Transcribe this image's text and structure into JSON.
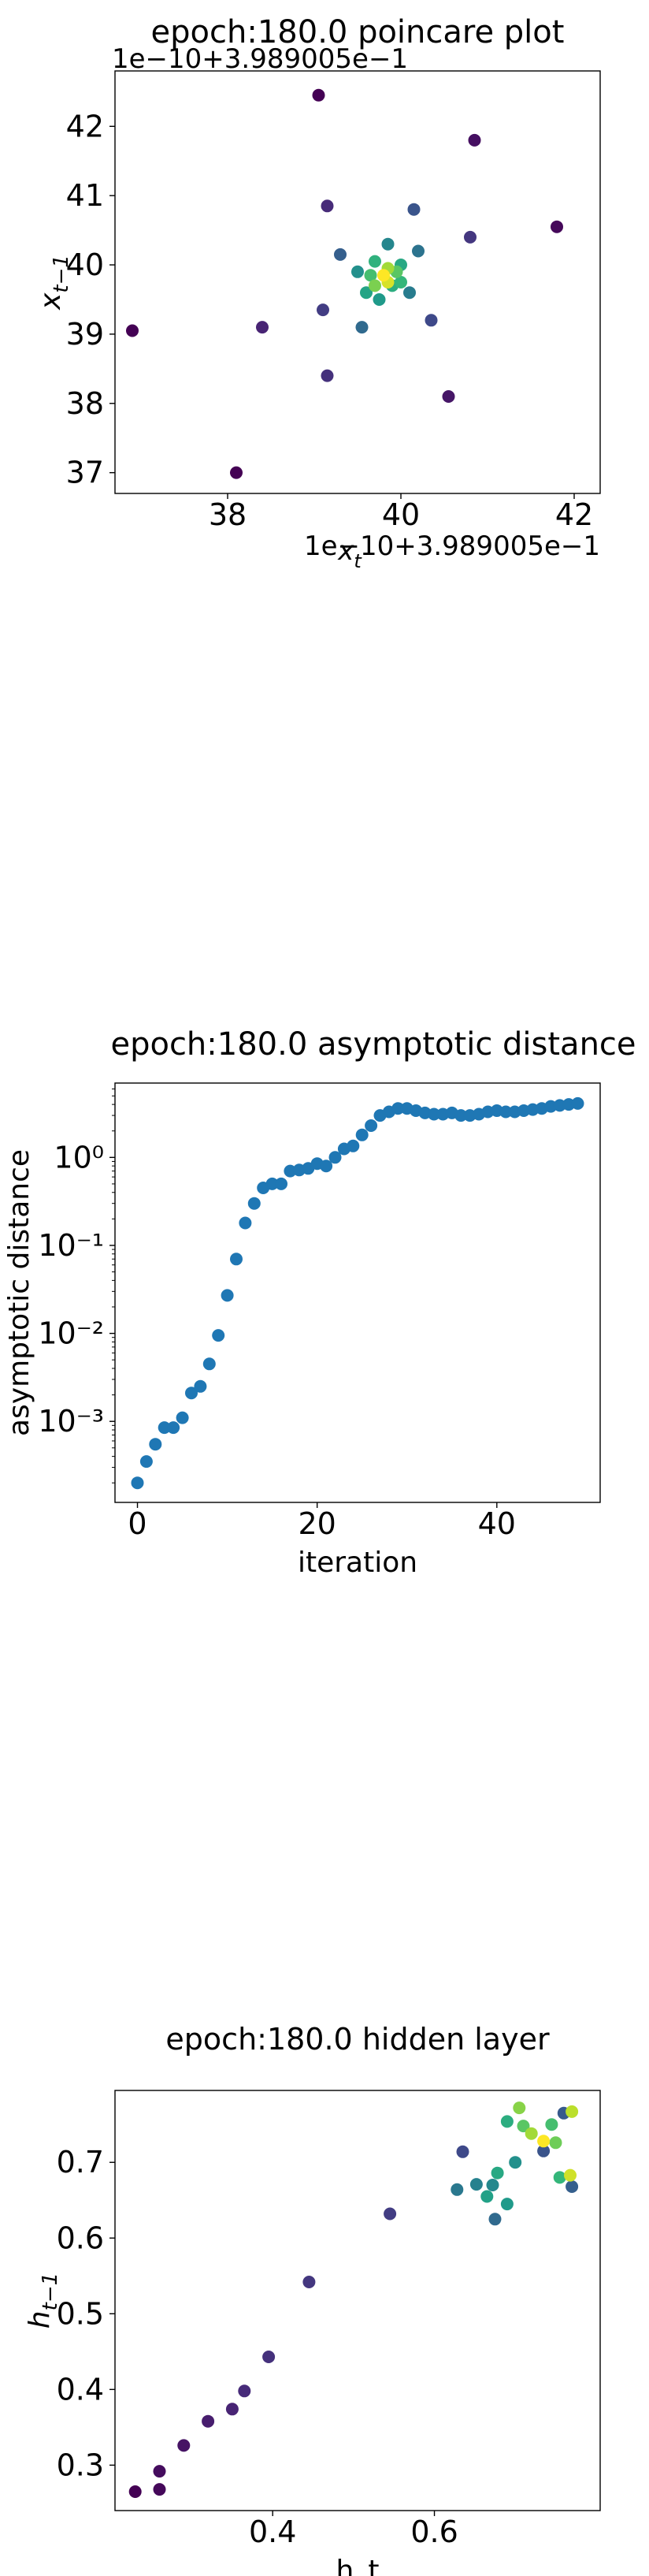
{
  "chart_data": [
    {
      "type": "scatter",
      "title": "epoch:180.0 poincare plot",
      "xlabel": "x_t",
      "ylabel": "x_{t-1}",
      "x_offset_label": "1e−10+3.989005e−1",
      "y_offset_label": "1e−10+3.989005e−1",
      "xlim": [
        36.7,
        42.3
      ],
      "ylim": [
        36.7,
        42.8
      ],
      "xticks": [
        38,
        40,
        42
      ],
      "yticks": [
        37,
        38,
        39,
        40,
        41,
        42
      ],
      "colormap": "viridis",
      "points": [
        {
          "x": 36.9,
          "y": 39.05,
          "c": 0.0
        },
        {
          "x": 38.1,
          "y": 37.0,
          "c": 0.0
        },
        {
          "x": 39.05,
          "y": 42.45,
          "c": 0.0
        },
        {
          "x": 41.8,
          "y": 40.55,
          "c": 0.02
        },
        {
          "x": 40.85,
          "y": 41.8,
          "c": 0.04
        },
        {
          "x": 40.55,
          "y": 38.1,
          "c": 0.06
        },
        {
          "x": 38.4,
          "y": 39.1,
          "c": 0.1
        },
        {
          "x": 39.15,
          "y": 40.85,
          "c": 0.12
        },
        {
          "x": 39.15,
          "y": 38.4,
          "c": 0.14
        },
        {
          "x": 40.8,
          "y": 40.4,
          "c": 0.16
        },
        {
          "x": 39.1,
          "y": 39.35,
          "c": 0.18
        },
        {
          "x": 40.35,
          "y": 39.2,
          "c": 0.22
        },
        {
          "x": 40.15,
          "y": 40.8,
          "c": 0.26
        },
        {
          "x": 39.3,
          "y": 40.15,
          "c": 0.3
        },
        {
          "x": 39.55,
          "y": 39.1,
          "c": 0.34
        },
        {
          "x": 40.2,
          "y": 40.2,
          "c": 0.38
        },
        {
          "x": 40.1,
          "y": 39.6,
          "c": 0.42
        },
        {
          "x": 39.85,
          "y": 40.3,
          "c": 0.46
        },
        {
          "x": 39.5,
          "y": 39.9,
          "c": 0.5
        },
        {
          "x": 39.75,
          "y": 39.5,
          "c": 0.54
        },
        {
          "x": 39.6,
          "y": 39.6,
          "c": 0.58
        },
        {
          "x": 40.0,
          "y": 40.0,
          "c": 0.6
        },
        {
          "x": 39.9,
          "y": 39.7,
          "c": 0.62
        },
        {
          "x": 39.7,
          "y": 40.05,
          "c": 0.64
        },
        {
          "x": 40.0,
          "y": 39.75,
          "c": 0.66
        },
        {
          "x": 39.65,
          "y": 39.85,
          "c": 0.7
        },
        {
          "x": 39.95,
          "y": 39.9,
          "c": 0.74
        },
        {
          "x": 39.7,
          "y": 39.7,
          "c": 0.8
        },
        {
          "x": 39.85,
          "y": 39.95,
          "c": 0.86
        },
        {
          "x": 39.85,
          "y": 39.75,
          "c": 0.94
        },
        {
          "x": 39.8,
          "y": 39.85,
          "c": 1.0
        }
      ]
    },
    {
      "type": "scatter",
      "title": "epoch:180.0 asymptotic distance",
      "xlabel": "iteration",
      "ylabel": "asymptotic distance",
      "yscale": "log",
      "xlim": [
        -2.5,
        51.5
      ],
      "ylim": [
        0.00012,
        7
      ],
      "xticks": [
        0,
        20,
        40
      ],
      "yticks": [
        0.001,
        0.01,
        0.1,
        1
      ],
      "ytick_labels": [
        "10⁻³",
        "10⁻²",
        "10⁻¹",
        "10⁰"
      ],
      "color": "#1f77b4",
      "x": [
        0,
        1,
        2,
        3,
        4,
        5,
        6,
        7,
        8,
        9,
        10,
        11,
        12,
        13,
        14,
        15,
        16,
        17,
        18,
        19,
        20,
        21,
        22,
        23,
        24,
        25,
        26,
        27,
        28,
        29,
        30,
        31,
        32,
        33,
        34,
        35,
        36,
        37,
        38,
        39,
        40,
        41,
        42,
        43,
        44,
        45,
        46,
        47,
        48,
        49
      ],
      "values": [
        0.0002,
        0.00035,
        0.00055,
        0.00085,
        0.00085,
        0.0011,
        0.0021,
        0.0025,
        0.0045,
        0.0095,
        0.027,
        0.07,
        0.18,
        0.3,
        0.45,
        0.5,
        0.5,
        0.7,
        0.72,
        0.75,
        0.85,
        0.8,
        1.0,
        1.25,
        1.35,
        1.8,
        2.3,
        3.0,
        3.3,
        3.6,
        3.6,
        3.4,
        3.2,
        3.1,
        3.1,
        3.2,
        3.0,
        3.0,
        3.1,
        3.3,
        3.4,
        3.3,
        3.3,
        3.4,
        3.5,
        3.6,
        3.8,
        3.9,
        4.0,
        4.1
      ]
    },
    {
      "type": "scatter",
      "title": "epoch:180.0 hidden layer",
      "xlabel": "h_t",
      "ylabel": "h_{t-1}",
      "xlim": [
        0.205,
        0.805
      ],
      "ylim": [
        0.24,
        0.795
      ],
      "xticks": [
        0.4,
        0.6
      ],
      "yticks": [
        0.3,
        0.4,
        0.5,
        0.6,
        0.7
      ],
      "colormap": "viridis",
      "points": [
        {
          "x": 0.23,
          "y": 0.265,
          "c": 0.0
        },
        {
          "x": 0.26,
          "y": 0.268,
          "c": 0.02
        },
        {
          "x": 0.26,
          "y": 0.292,
          "c": 0.03
        },
        {
          "x": 0.29,
          "y": 0.326,
          "c": 0.05
        },
        {
          "x": 0.32,
          "y": 0.358,
          "c": 0.08
        },
        {
          "x": 0.35,
          "y": 0.374,
          "c": 0.1
        },
        {
          "x": 0.365,
          "y": 0.398,
          "c": 0.12
        },
        {
          "x": 0.395,
          "y": 0.443,
          "c": 0.14
        },
        {
          "x": 0.445,
          "y": 0.542,
          "c": 0.16
        },
        {
          "x": 0.545,
          "y": 0.632,
          "c": 0.18
        },
        {
          "x": 0.635,
          "y": 0.714,
          "c": 0.22
        },
        {
          "x": 0.77,
          "y": 0.668,
          "c": 0.3
        },
        {
          "x": 0.76,
          "y": 0.765,
          "c": 0.28
        },
        {
          "x": 0.735,
          "y": 0.715,
          "c": 0.26
        },
        {
          "x": 0.675,
          "y": 0.625,
          "c": 0.34
        },
        {
          "x": 0.628,
          "y": 0.664,
          "c": 0.4
        },
        {
          "x": 0.652,
          "y": 0.671,
          "c": 0.44
        },
        {
          "x": 0.672,
          "y": 0.67,
          "c": 0.47
        },
        {
          "x": 0.7,
          "y": 0.7,
          "c": 0.5
        },
        {
          "x": 0.69,
          "y": 0.645,
          "c": 0.54
        },
        {
          "x": 0.665,
          "y": 0.655,
          "c": 0.57
        },
        {
          "x": 0.678,
          "y": 0.686,
          "c": 0.6
        },
        {
          "x": 0.69,
          "y": 0.754,
          "c": 0.62
        },
        {
          "x": 0.755,
          "y": 0.68,
          "c": 0.66
        },
        {
          "x": 0.745,
          "y": 0.75,
          "c": 0.7
        },
        {
          "x": 0.71,
          "y": 0.748,
          "c": 0.74
        },
        {
          "x": 0.75,
          "y": 0.726,
          "c": 0.78
        },
        {
          "x": 0.705,
          "y": 0.772,
          "c": 0.82
        },
        {
          "x": 0.72,
          "y": 0.738,
          "c": 0.86
        },
        {
          "x": 0.77,
          "y": 0.767,
          "c": 0.9
        },
        {
          "x": 0.768,
          "y": 0.683,
          "c": 0.93
        },
        {
          "x": 0.735,
          "y": 0.728,
          "c": 1.0
        }
      ]
    }
  ]
}
